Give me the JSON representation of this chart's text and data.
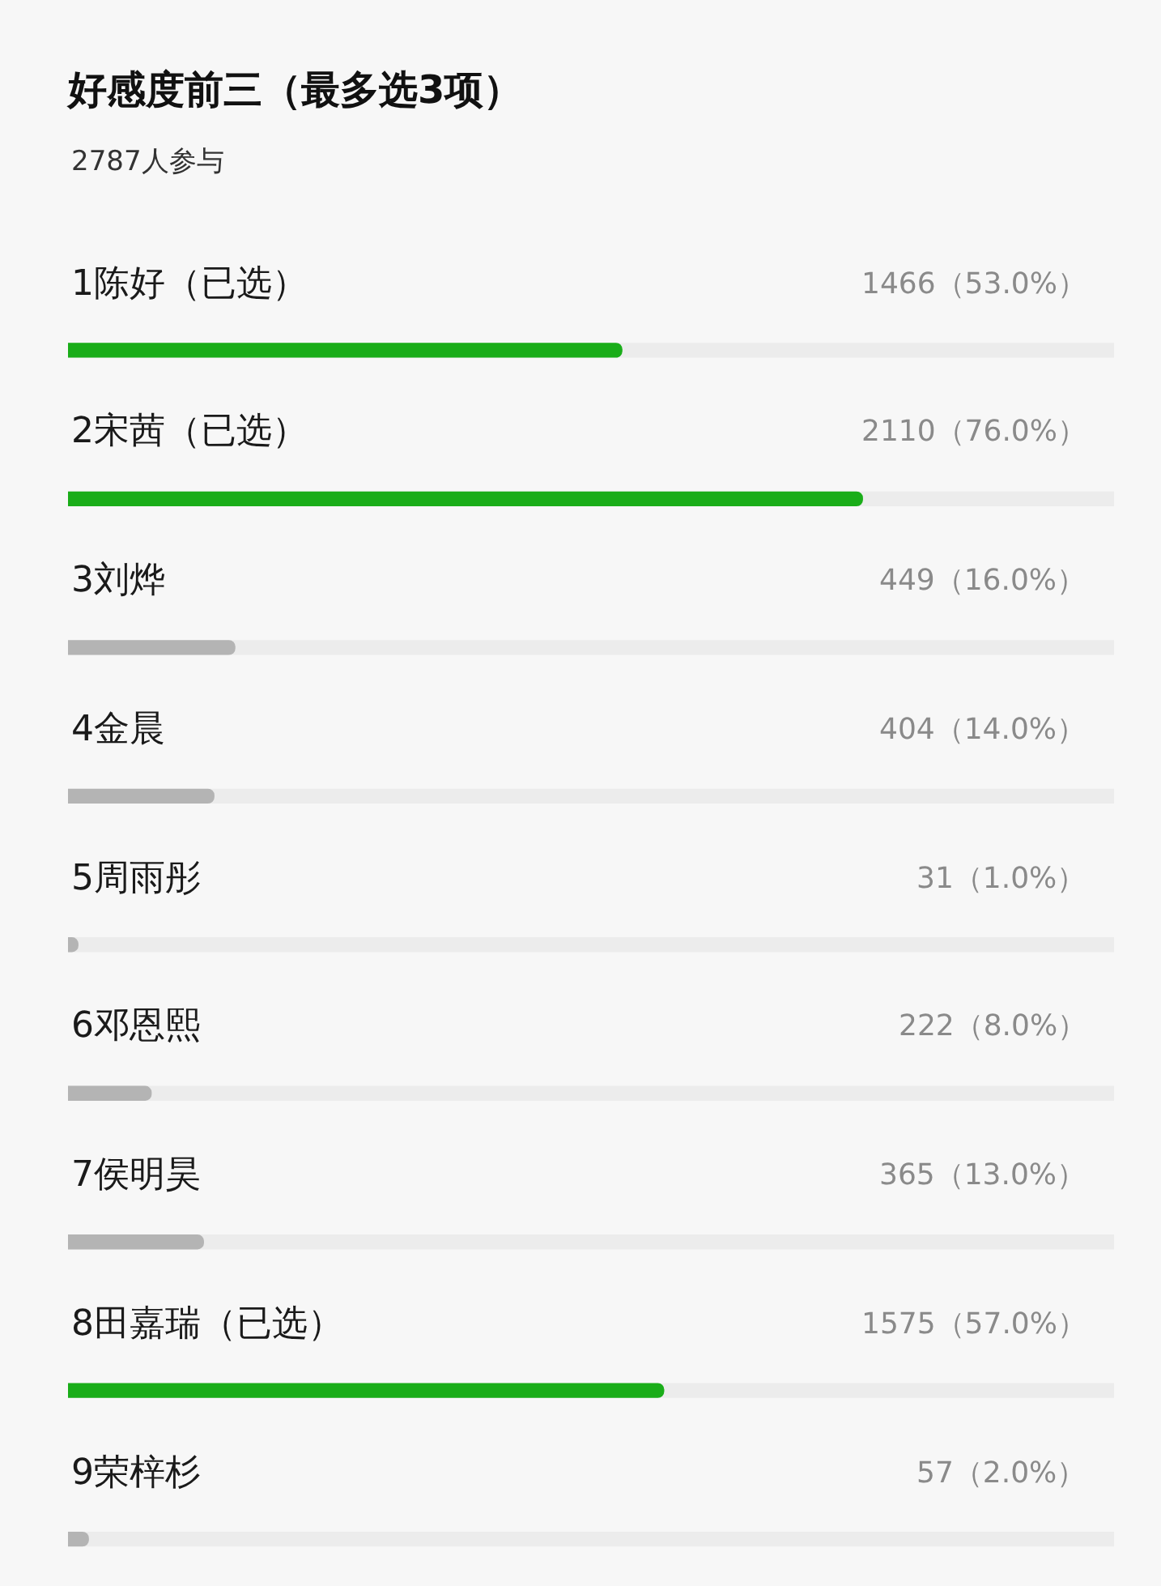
{
  "chart_data": {
    "type": "bar",
    "orientation": "horizontal",
    "title": "好感度前三（最多选3项）",
    "subtitle": "2787人参与",
    "categories": [
      "1陈好（已选）",
      "2宋茜（已选）",
      "3刘烨",
      "4金晨",
      "5周雨彤",
      "6邓恩熙",
      "7侯明昊",
      "8田嘉瑞（已选）",
      "9荣梓杉"
    ],
    "values": [
      53.0,
      76.0,
      16.0,
      14.0,
      1.0,
      8.0,
      13.0,
      57.0,
      2.0
    ],
    "value_labels": [
      "1466（53.0%）",
      "2110（76.0%）",
      "449（16.0%）",
      "404（14.0%）",
      "31（1.0%）",
      "222（8.0%）",
      "365（13.0%）",
      "1575（57.0%）",
      "57（2.0%）"
    ],
    "colors": [
      "#1aad19",
      "#1aad19",
      "#b4b4b4",
      "#b4b4b4",
      "#b4b4b4",
      "#b4b4b4",
      "#b4b4b4",
      "#1aad19",
      "#b4b4b4"
    ],
    "xlim": [
      0,
      100
    ],
    "tick_labels": "y"
  }
}
